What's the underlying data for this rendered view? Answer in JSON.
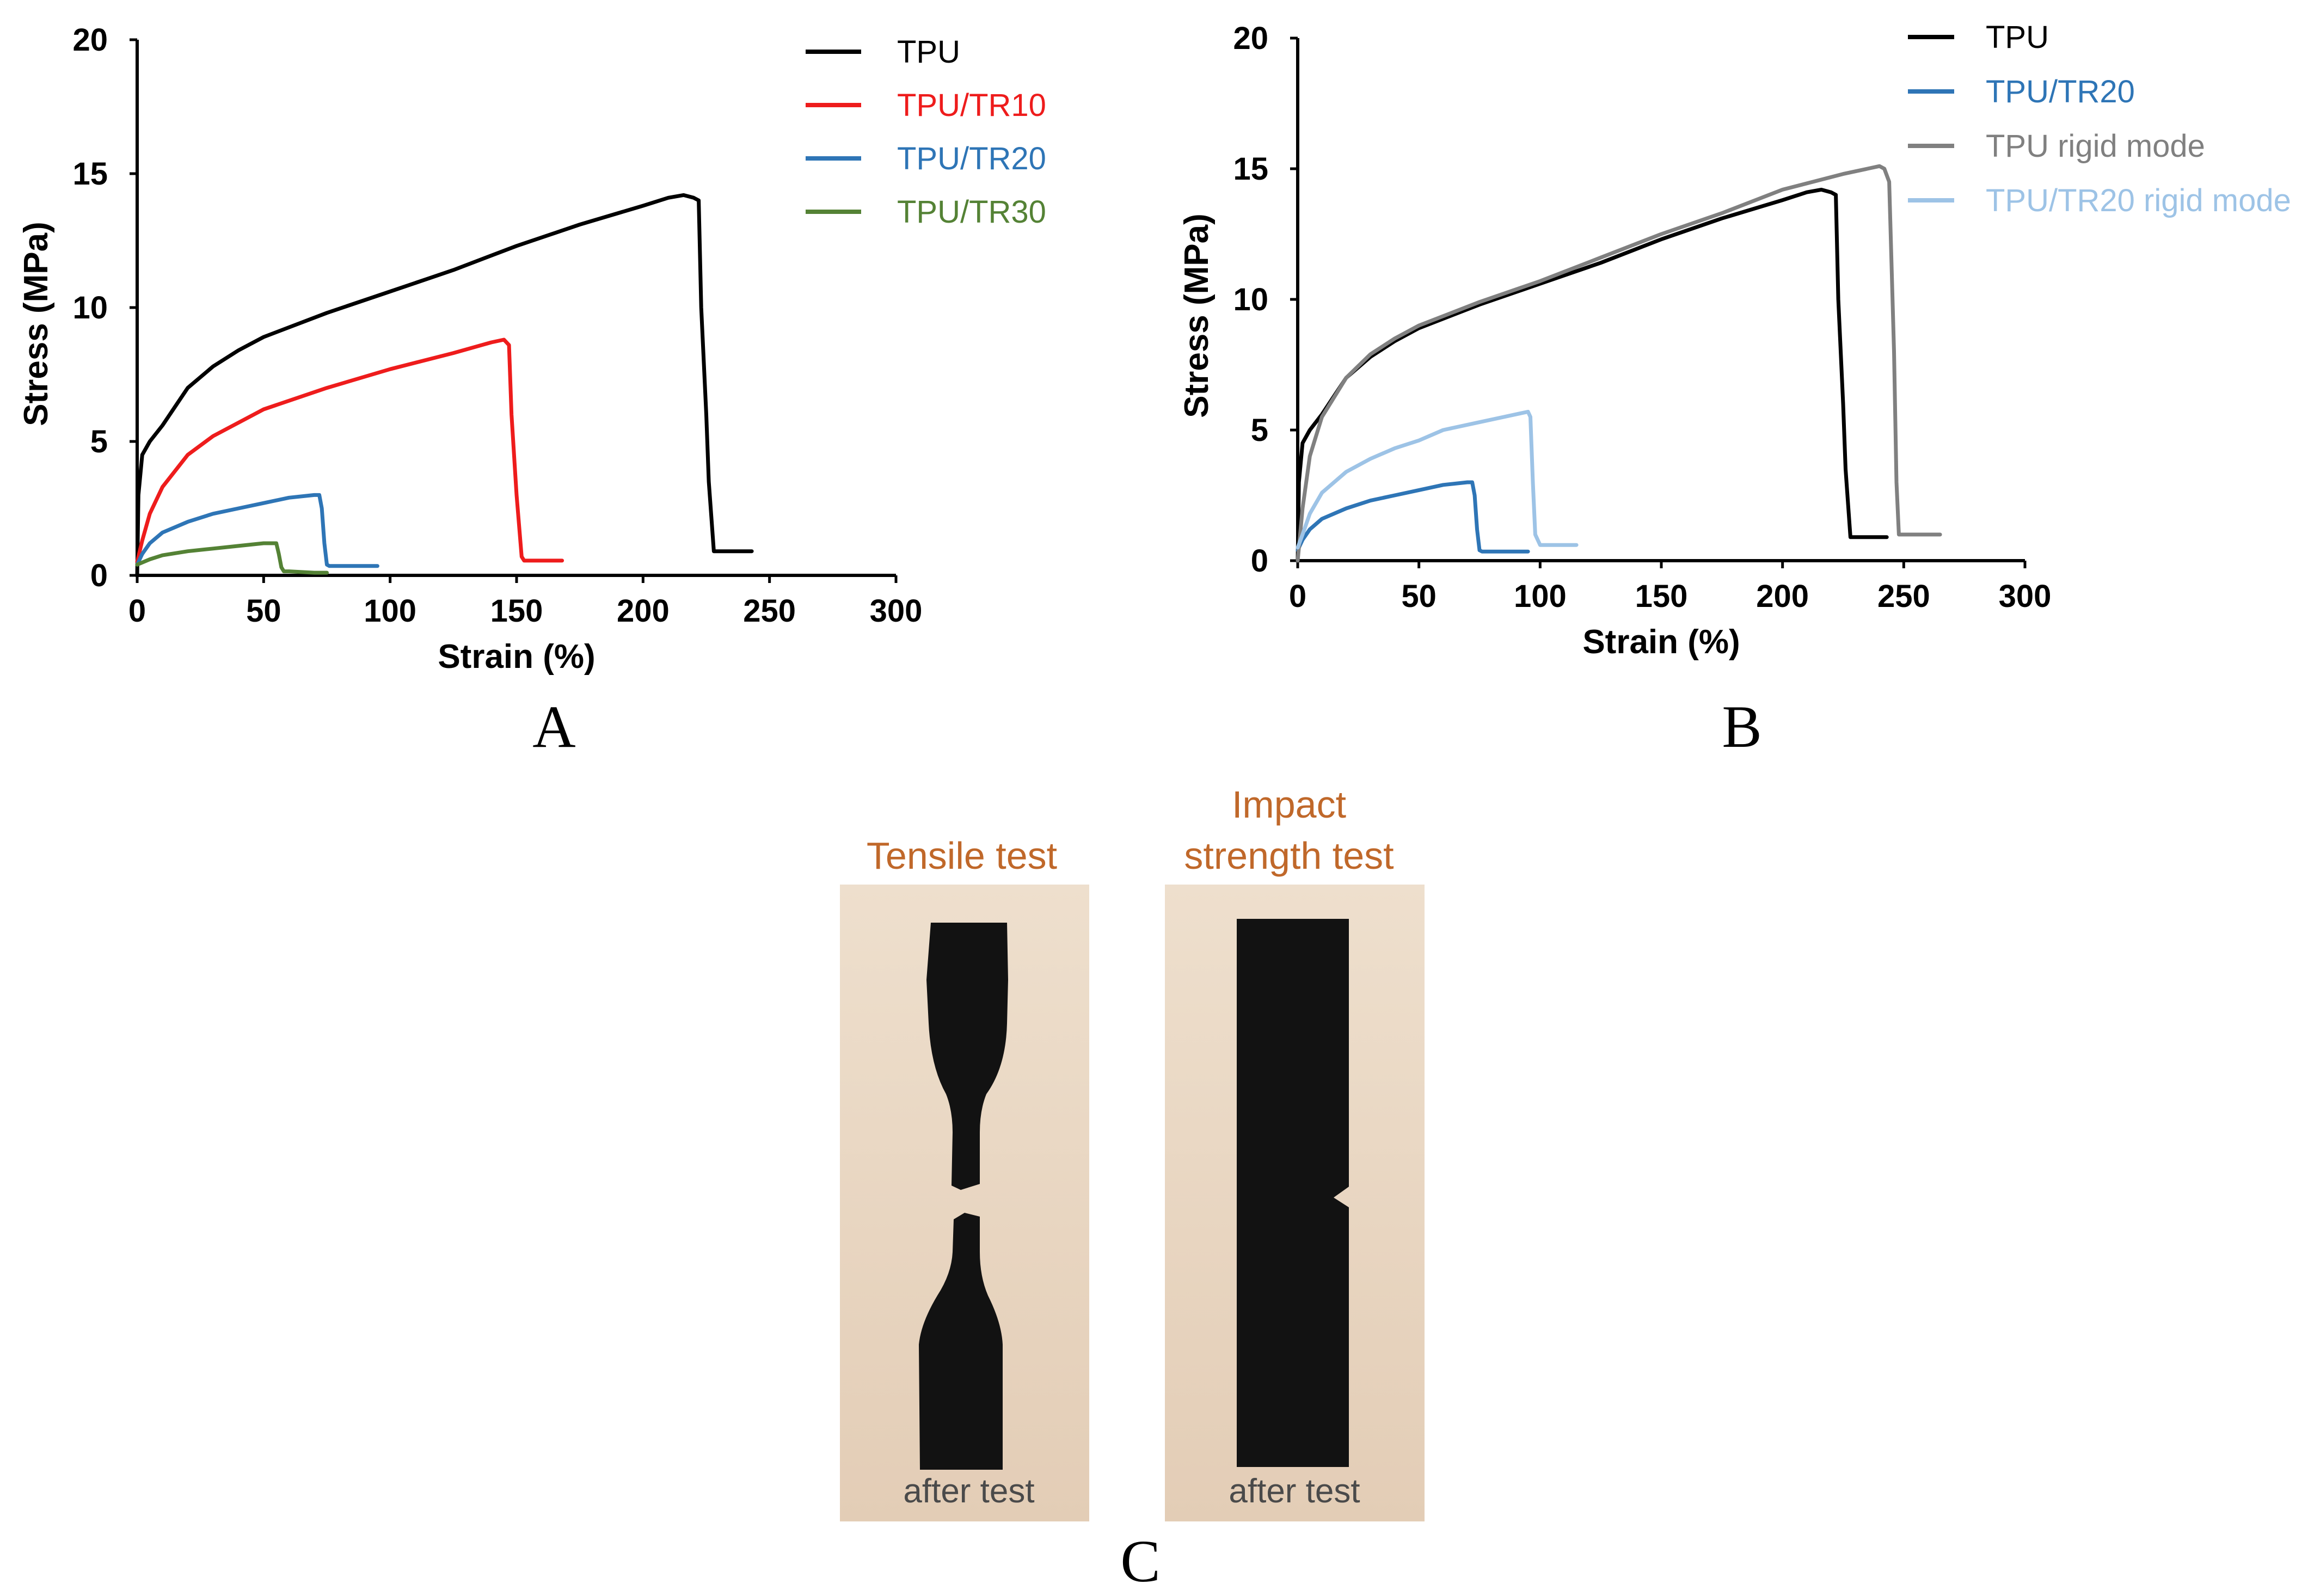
{
  "chart_data": [
    {
      "type": "line",
      "panel": "A",
      "xlabel": "Strain (%)",
      "ylabel": "Stress (MPa)",
      "xlim": [
        0,
        300
      ],
      "ylim": [
        0,
        20
      ],
      "xticks": [
        "0",
        "50",
        "100",
        "150",
        "200",
        "250",
        "300"
      ],
      "yticks": [
        "0",
        "5",
        "10",
        "15",
        "20"
      ],
      "grid": false,
      "legend_position": "top-right",
      "series": [
        {
          "name": "TPU",
          "color": "#000000",
          "x": [
            0,
            0.5,
            2,
            5,
            10,
            15,
            20,
            30,
            40,
            50,
            75,
            100,
            125,
            150,
            175,
            200,
            210,
            216,
            220,
            222,
            223,
            225,
            226,
            228,
            235,
            243
          ],
          "y": [
            0,
            3.0,
            4.5,
            5.0,
            5.6,
            6.3,
            7.0,
            7.8,
            8.4,
            8.9,
            9.8,
            10.6,
            11.4,
            12.3,
            13.1,
            13.8,
            14.1,
            14.2,
            14.1,
            14.0,
            10.0,
            6.0,
            3.5,
            0.9,
            0.9,
            0.9
          ]
        },
        {
          "name": "TPU/TR10",
          "color": "#ee1c1c",
          "x": [
            0,
            2,
            5,
            10,
            20,
            30,
            50,
            75,
            100,
            125,
            140,
            145,
            147,
            148,
            150,
            152,
            153,
            160,
            168
          ],
          "y": [
            0.5,
            1.3,
            2.3,
            3.3,
            4.5,
            5.2,
            6.2,
            7.0,
            7.7,
            8.3,
            8.7,
            8.8,
            8.6,
            6.0,
            3.0,
            0.7,
            0.55,
            0.55,
            0.55
          ]
        },
        {
          "name": "TPU/TR20",
          "color": "#2e75b6",
          "x": [
            0,
            2,
            5,
            10,
            20,
            30,
            40,
            50,
            60,
            70,
            72,
            73,
            74,
            75,
            76,
            80,
            95
          ],
          "y": [
            0.4,
            0.8,
            1.2,
            1.6,
            2.0,
            2.3,
            2.5,
            2.7,
            2.9,
            3.0,
            3.0,
            2.5,
            1.2,
            0.4,
            0.35,
            0.35,
            0.35
          ]
        },
        {
          "name": "TPU/TR30",
          "color": "#548235",
          "x": [
            0,
            5,
            10,
            20,
            30,
            40,
            50,
            55,
            56,
            57,
            58,
            60,
            70,
            75
          ],
          "y": [
            0.4,
            0.6,
            0.75,
            0.9,
            1.0,
            1.1,
            1.2,
            1.2,
            0.8,
            0.3,
            0.15,
            0.15,
            0.1,
            0.1
          ]
        }
      ]
    },
    {
      "type": "line",
      "panel": "B",
      "xlabel": "Strain (%)",
      "ylabel": "Stress (MPa)",
      "xlim": [
        0,
        300
      ],
      "ylim": [
        0,
        20
      ],
      "xticks": [
        "0",
        "50",
        "100",
        "150",
        "200",
        "250",
        "300"
      ],
      "yticks": [
        "0",
        "5",
        "10",
        "15",
        "20"
      ],
      "grid": false,
      "legend_position": "top-right",
      "series": [
        {
          "name": "TPU",
          "color": "#000000",
          "x": [
            0,
            0.5,
            2,
            5,
            10,
            15,
            20,
            30,
            40,
            50,
            75,
            100,
            125,
            150,
            175,
            200,
            210,
            216,
            220,
            222,
            223,
            225,
            226,
            228,
            235,
            243
          ],
          "y": [
            0,
            3.0,
            4.5,
            5.0,
            5.6,
            6.3,
            7.0,
            7.8,
            8.4,
            8.9,
            9.8,
            10.6,
            11.4,
            12.3,
            13.1,
            13.8,
            14.1,
            14.2,
            14.1,
            14.0,
            10.0,
            6.0,
            3.5,
            0.9,
            0.9,
            0.9
          ]
        },
        {
          "name": "TPU/TR20",
          "color": "#2e75b6",
          "x": [
            0,
            2,
            5,
            10,
            20,
            30,
            40,
            50,
            60,
            70,
            72,
            73,
            74,
            75,
            76,
            80,
            95
          ],
          "y": [
            0.4,
            0.8,
            1.2,
            1.6,
            2.0,
            2.3,
            2.5,
            2.7,
            2.9,
            3.0,
            3.0,
            2.5,
            1.2,
            0.4,
            0.35,
            0.35,
            0.35
          ]
        },
        {
          "name": "TPU rigid mode",
          "color": "#808080",
          "x": [
            0,
            2,
            5,
            10,
            20,
            30,
            40,
            50,
            75,
            100,
            125,
            150,
            175,
            200,
            225,
            235,
            240,
            242,
            244,
            246,
            247,
            248,
            250,
            265
          ],
          "y": [
            0,
            2.0,
            4.0,
            5.5,
            7.0,
            7.9,
            8.5,
            9.0,
            9.9,
            10.7,
            11.6,
            12.5,
            13.3,
            14.2,
            14.8,
            15.0,
            15.1,
            15.0,
            14.5,
            8.0,
            3.0,
            1.0,
            1.0,
            1.0
          ]
        },
        {
          "name": "TPU/TR20 rigid mode",
          "color": "#9dc3e6",
          "x": [
            0,
            2,
            5,
            10,
            20,
            30,
            40,
            50,
            60,
            75,
            90,
            95,
            96,
            97,
            98,
            100,
            105,
            115
          ],
          "y": [
            0.5,
            1.0,
            1.8,
            2.6,
            3.4,
            3.9,
            4.3,
            4.6,
            5.0,
            5.3,
            5.6,
            5.7,
            5.5,
            3.0,
            1.0,
            0.6,
            0.6,
            0.6
          ]
        }
      ]
    }
  ],
  "panel_labels": {
    "a": "A",
    "b": "B",
    "c": "C"
  },
  "photos": {
    "tensile": {
      "title": "Tensile test",
      "caption": "after test"
    },
    "impact": {
      "title_line1": "Impact",
      "title_line2": "strength test",
      "caption": "after test"
    }
  }
}
